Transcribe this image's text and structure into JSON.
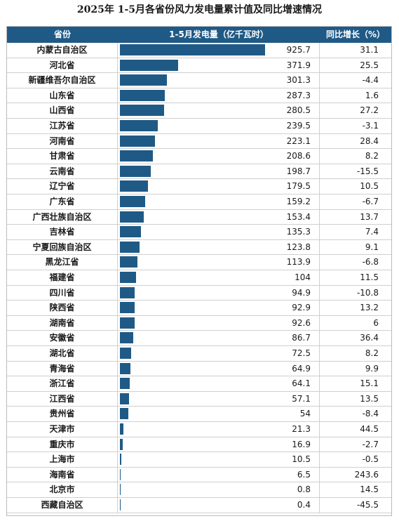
{
  "title": "2025年 1-5月各省份风力发电量累计值及同比增速情况",
  "headers": {
    "province": "省份",
    "value": "1-5月发电量（亿千瓦时）",
    "yoy": "同比增长（%）"
  },
  "colors": {
    "bar": "#1f5a86",
    "header_bg": "#1f5a86"
  },
  "chart_data": {
    "type": "bar",
    "orientation": "horizontal",
    "categories": [
      "内蒙古自治区",
      "河北省",
      "新疆维吾尔自治区",
      "山东省",
      "山西省",
      "江苏省",
      "河南省",
      "甘肃省",
      "云南省",
      "辽宁省",
      "广东省",
      "广西壮族自治区",
      "吉林省",
      "宁夏回族自治区",
      "黑龙江省",
      "福建省",
      "四川省",
      "陕西省",
      "湖南省",
      "安徽省",
      "湖北省",
      "青海省",
      "浙江省",
      "江西省",
      "贵州省",
      "天津市",
      "重庆市",
      "上海市",
      "海南省",
      "北京市",
      "西藏自治区"
    ],
    "values": [
      "925.7",
      "371.9",
      "301.3",
      "287.3",
      "280.5",
      "239.5",
      "223.1",
      "208.6",
      "198.7",
      "179.5",
      "159.2",
      "153.4",
      "135.3",
      "123.8",
      "113.9",
      "104",
      "94.9",
      "92.9",
      "92.6",
      "86.7",
      "72.5",
      "64.9",
      "64.1",
      "57.1",
      "54",
      "21.3",
      "16.9",
      "10.5",
      "6.5",
      "0.8",
      "0.4"
    ],
    "yoy": [
      "31.1",
      "25.5",
      "-4.4",
      "1.6",
      "27.2",
      "-3.1",
      "28.4",
      "8.2",
      "-15.5",
      "10.5",
      "-6.7",
      "13.7",
      "7.4",
      "9.1",
      "-6.8",
      "11.5",
      "-10.8",
      "13.2",
      "6",
      "36.4",
      "8.2",
      "9.9",
      "15.1",
      "13.5",
      "-8.4",
      "44.5",
      "-2.7",
      "-0.5",
      "243.6",
      "14.5",
      "-45.5"
    ],
    "xlim": [
      0,
      925.7
    ]
  }
}
